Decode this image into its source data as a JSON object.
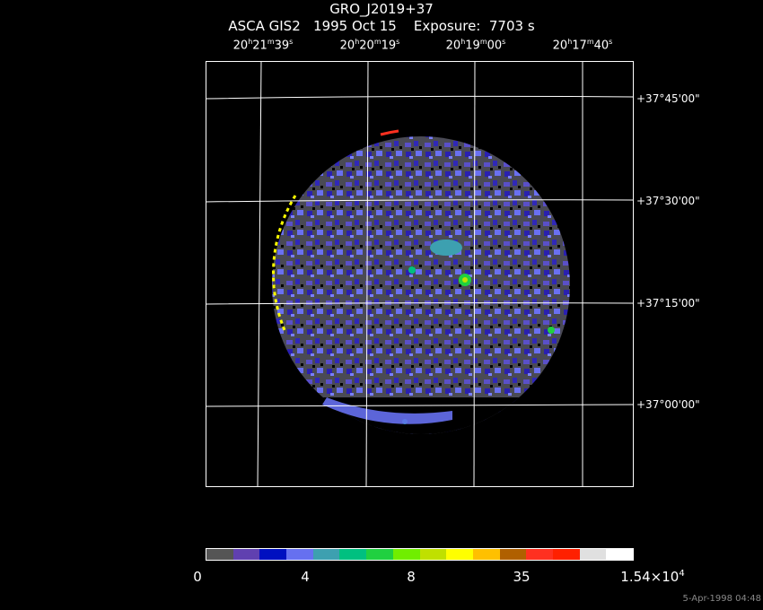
{
  "header": {
    "title": "GRO_J2019+37",
    "subtitle": "ASCA GIS2   1995 Oct 15    Exposure:  7703 s"
  },
  "ra_labels": [
    {
      "h": "20",
      "hu": "h",
      "m": "21",
      "mu": "m",
      "s": "39",
      "su": "s"
    },
    {
      "h": "20",
      "hu": "h",
      "m": "20",
      "mu": "m",
      "s": "19",
      "su": "s"
    },
    {
      "h": "20",
      "hu": "h",
      "m": "19",
      "mu": "m",
      "s": "00",
      "su": "s"
    },
    {
      "h": "20",
      "hu": "h",
      "m": "17",
      "mu": "m",
      "s": "40",
      "su": "s"
    }
  ],
  "dec_labels": [
    "+37°45'00\"",
    "+37°30'00\"",
    "+37°15'00\"",
    "+37°00'00\""
  ],
  "colorbar": {
    "colors": [
      "#555555",
      "#6040b0",
      "#0010c0",
      "#6670f0",
      "#3da0b0",
      "#00c080",
      "#20d040",
      "#70ee00",
      "#c0e000",
      "#ffff00",
      "#ffc000",
      "#b06000",
      "#ff3020",
      "#ff2000",
      "#e0e0e0",
      "#ffffff"
    ],
    "labels": [
      "0",
      "4",
      "8",
      "35"
    ],
    "max_label": {
      "base": "1.54×10",
      "exp": "4"
    }
  },
  "timestamp": "5-Apr-1998 04:48"
}
